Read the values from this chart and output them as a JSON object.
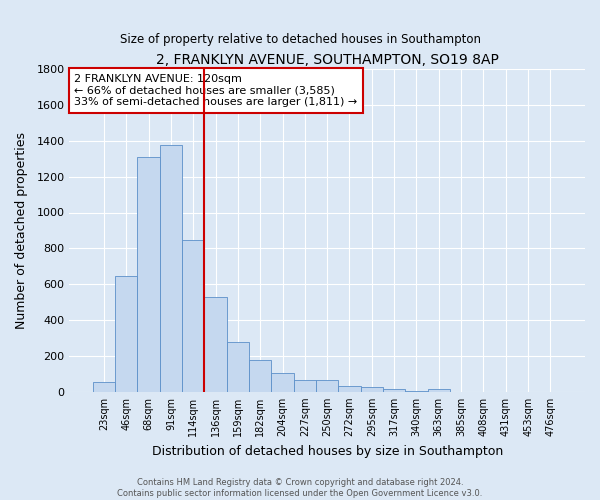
{
  "title": "2, FRANKLYN AVENUE, SOUTHAMPTON, SO19 8AP",
  "subtitle": "Size of property relative to detached houses in Southampton",
  "xlabel": "Distribution of detached houses by size in Southampton",
  "ylabel": "Number of detached properties",
  "footer_line1": "Contains HM Land Registry data © Crown copyright and database right 2024.",
  "footer_line2": "Contains public sector information licensed under the Open Government Licence v3.0.",
  "categories": [
    "23sqm",
    "46sqm",
    "68sqm",
    "91sqm",
    "114sqm",
    "136sqm",
    "159sqm",
    "182sqm",
    "204sqm",
    "227sqm",
    "250sqm",
    "272sqm",
    "295sqm",
    "317sqm",
    "340sqm",
    "363sqm",
    "385sqm",
    "408sqm",
    "431sqm",
    "453sqm",
    "476sqm"
  ],
  "values": [
    55,
    645,
    1310,
    1375,
    845,
    530,
    275,
    180,
    105,
    65,
    65,
    35,
    25,
    18,
    5,
    15,
    0,
    0,
    0,
    0,
    0
  ],
  "bar_color": "#c5d8ef",
  "bar_edge_color": "#5b8fc9",
  "background_color": "#dce8f5",
  "grid_color": "#ffffff",
  "vline_color": "#cc0000",
  "annotation_text": "2 FRANKLYN AVENUE: 120sqm\n← 66% of detached houses are smaller (3,585)\n33% of semi-detached houses are larger (1,811) →",
  "annotation_box_color": "white",
  "annotation_box_edge": "#cc0000",
  "ylim": [
    0,
    1800
  ],
  "yticks": [
    0,
    200,
    400,
    600,
    800,
    1000,
    1200,
    1400,
    1600,
    1800
  ]
}
